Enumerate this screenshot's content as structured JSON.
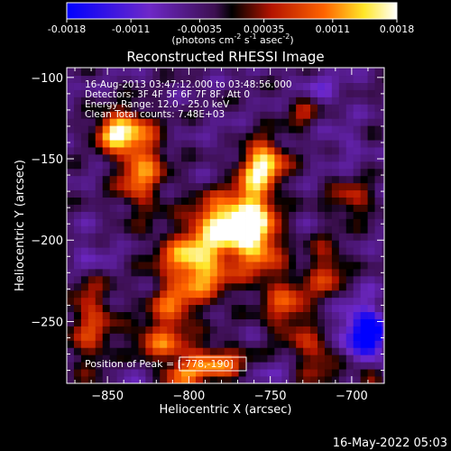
{
  "chart_data": {
    "type": "heatmap",
    "title": "Reconstructed RHESSI Image",
    "xlabel": "Heliocentric X (arcsec)",
    "ylabel": "Heliocentric Y (arcsec)",
    "xlim": [
      -875,
      -680
    ],
    "ylim": [
      -288,
      -94
    ],
    "x_ticks": [
      -850,
      -800,
      -750,
      -700
    ],
    "x_tick_labels": [
      "−850",
      "−800",
      "−750",
      "−700"
    ],
    "y_ticks": [
      -100,
      -150,
      -200,
      -250
    ],
    "y_tick_labels": [
      "−100",
      "−150",
      "−200",
      "−250"
    ],
    "annotations": [
      "16-Aug-2013 03:47:12.000 to 03:48:56.000",
      "Detectors: 3F 4F 5F 6F 7F 8F, Att 0",
      "Energy Range: 12.0 - 25.0 keV",
      "Clean    Total counts: 7.48E+03"
    ],
    "peak_label": "Position of Peak = [-778,-190]",
    "peak": {
      "x": -778,
      "y": -190,
      "value": 0.0018
    },
    "colorbar": {
      "ticks": [
        -0.0018,
        -0.0011,
        -0.00035,
        0.00035,
        0.0011,
        0.0018
      ],
      "tick_labels": [
        "-0.0018",
        "-0.0011",
        "-0.00035",
        "0.00035",
        "0.0011",
        "0.0018"
      ],
      "range": [
        -0.0018,
        0.0018
      ],
      "unit_main": "(photons cm",
      "unit_sup1": "-2",
      "unit_mid1": " s",
      "unit_sup2": "-1",
      "unit_mid2": " asec",
      "unit_sup3": "-2",
      "unit_end": ")"
    },
    "regions": [
      {
        "x": -778,
        "y": -190,
        "sx": 14,
        "sy": 12,
        "value": 0.0018
      },
      {
        "x": -758,
        "y": -200,
        "sx": 10,
        "sy": 16,
        "value": 0.0011
      },
      {
        "x": -752,
        "y": -152,
        "sx": 9,
        "sy": 9,
        "value": 0.0011
      },
      {
        "x": -760,
        "y": -165,
        "sx": 8,
        "sy": 18,
        "value": 0.0008
      },
      {
        "x": -830,
        "y": -155,
        "sx": 10,
        "sy": 18,
        "value": 0.0011
      },
      {
        "x": -840,
        "y": -130,
        "sx": 10,
        "sy": 8,
        "value": 0.0008
      },
      {
        "x": -848,
        "y": -135,
        "sx": 7,
        "sy": 6,
        "value": 0.0009
      },
      {
        "x": -800,
        "y": -210,
        "sx": 14,
        "sy": 10,
        "value": 0.0011
      },
      {
        "x": -790,
        "y": -225,
        "sx": 12,
        "sy": 10,
        "value": 0.0007
      },
      {
        "x": -810,
        "y": -240,
        "sx": 10,
        "sy": 10,
        "value": 0.0008
      },
      {
        "x": -818,
        "y": -262,
        "sx": 12,
        "sy": 8,
        "value": 0.0008
      },
      {
        "x": -785,
        "y": -275,
        "sx": 14,
        "sy": 7,
        "value": 0.0011
      },
      {
        "x": -805,
        "y": -283,
        "sx": 8,
        "sy": 5,
        "value": 0.0009
      },
      {
        "x": -860,
        "y": -250,
        "sx": 10,
        "sy": 22,
        "value": 0.0006
      },
      {
        "x": -740,
        "y": -240,
        "sx": 10,
        "sy": 14,
        "value": 0.0007
      },
      {
        "x": -715,
        "y": -220,
        "sx": 8,
        "sy": 14,
        "value": 0.0006
      },
      {
        "x": -720,
        "y": -270,
        "sx": 10,
        "sy": 12,
        "value": 0.0006
      },
      {
        "x": -690,
        "y": -285,
        "sx": 6,
        "sy": 5,
        "value": 0.0005
      },
      {
        "x": -700,
        "y": -175,
        "sx": 10,
        "sy": 8,
        "value": 0.0005
      },
      {
        "x": -730,
        "y": -120,
        "sx": 8,
        "sy": 8,
        "value": 0.0004
      },
      {
        "x": -705,
        "y": -140,
        "sx": 8,
        "sy": 8,
        "value": -0.0007
      },
      {
        "x": -700,
        "y": -255,
        "sx": 12,
        "sy": 14,
        "value": -0.0012
      },
      {
        "x": -688,
        "y": -258,
        "sx": 6,
        "sy": 10,
        "value": -0.0018
      },
      {
        "x": -720,
        "y": -108,
        "sx": 12,
        "sy": 8,
        "value": -0.0008
      },
      {
        "x": -860,
        "y": -210,
        "sx": 10,
        "sy": 10,
        "value": -0.0008
      },
      {
        "x": -770,
        "y": -140,
        "sx": 10,
        "sy": 8,
        "value": -0.0006
      },
      {
        "x": -840,
        "y": -280,
        "sx": 10,
        "sy": 6,
        "value": -0.0006
      },
      {
        "x": -750,
        "y": -280,
        "sx": 8,
        "sy": 6,
        "value": -0.0007
      }
    ]
  },
  "timestamp": "16-May-2022 05:03"
}
